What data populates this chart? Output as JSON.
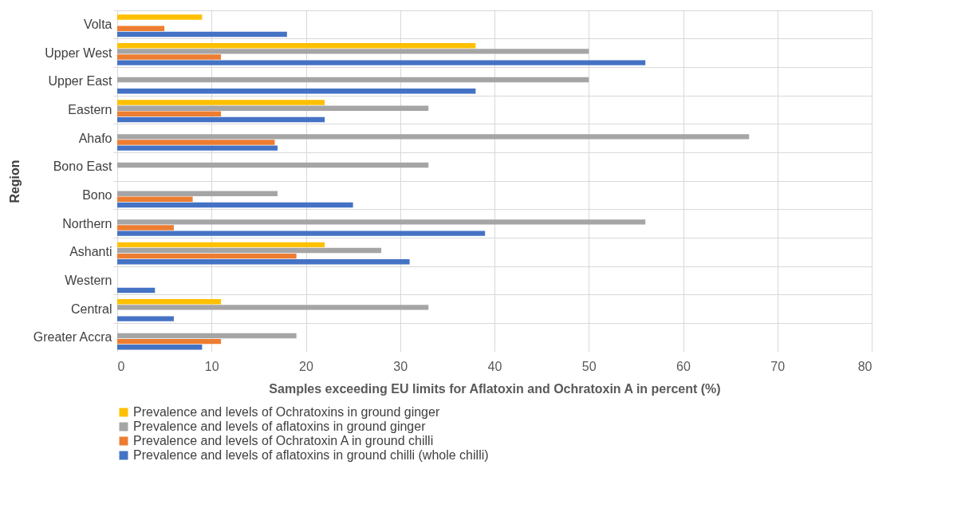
{
  "chart_data": {
    "type": "bar",
    "orientation": "horizontal",
    "xlabel": "Samples exceeding EU limits for Aflatoxin and Ochratoxin A  in percent (%)",
    "ylabel": "Region",
    "categories": [
      "Volta",
      "Upper West",
      "Upper East",
      "Eastern",
      "Ahafo",
      "Bono East",
      "Bono",
      "Northern",
      "Ashanti",
      "Western",
      "Central",
      "Greater Accra"
    ],
    "series": [
      {
        "name": "Prevalence and levels of Ochratoxins in ground ginger",
        "color": "#ffc000",
        "values": [
          9,
          38,
          null,
          22,
          null,
          null,
          null,
          null,
          22,
          null,
          11,
          null
        ]
      },
      {
        "name": "Prevalence and levels of aflatoxins in ground ginger",
        "color": "#a5a5a5",
        "values": [
          null,
          50,
          50,
          33,
          67,
          33,
          17,
          56,
          28,
          null,
          33,
          19
        ]
      },
      {
        "name": "Prevalence and levels of Ochratoxin A in ground chilli",
        "color": "#ed7d31",
        "values": [
          5,
          11,
          null,
          11,
          16.7,
          null,
          8,
          6,
          19,
          null,
          null,
          11
        ]
      },
      {
        "name": "Prevalence and levels of aflatoxins in ground chilli (whole chilli)",
        "color": "#4472c4",
        "values": [
          18,
          56,
          38,
          22,
          17,
          null,
          25,
          39,
          31,
          4,
          6,
          9
        ]
      }
    ],
    "xlim": [
      0,
      80
    ],
    "xticks": [
      0,
      10,
      20,
      30,
      40,
      50,
      60,
      70,
      80
    ],
    "grid": true,
    "legend": "bottom"
  }
}
